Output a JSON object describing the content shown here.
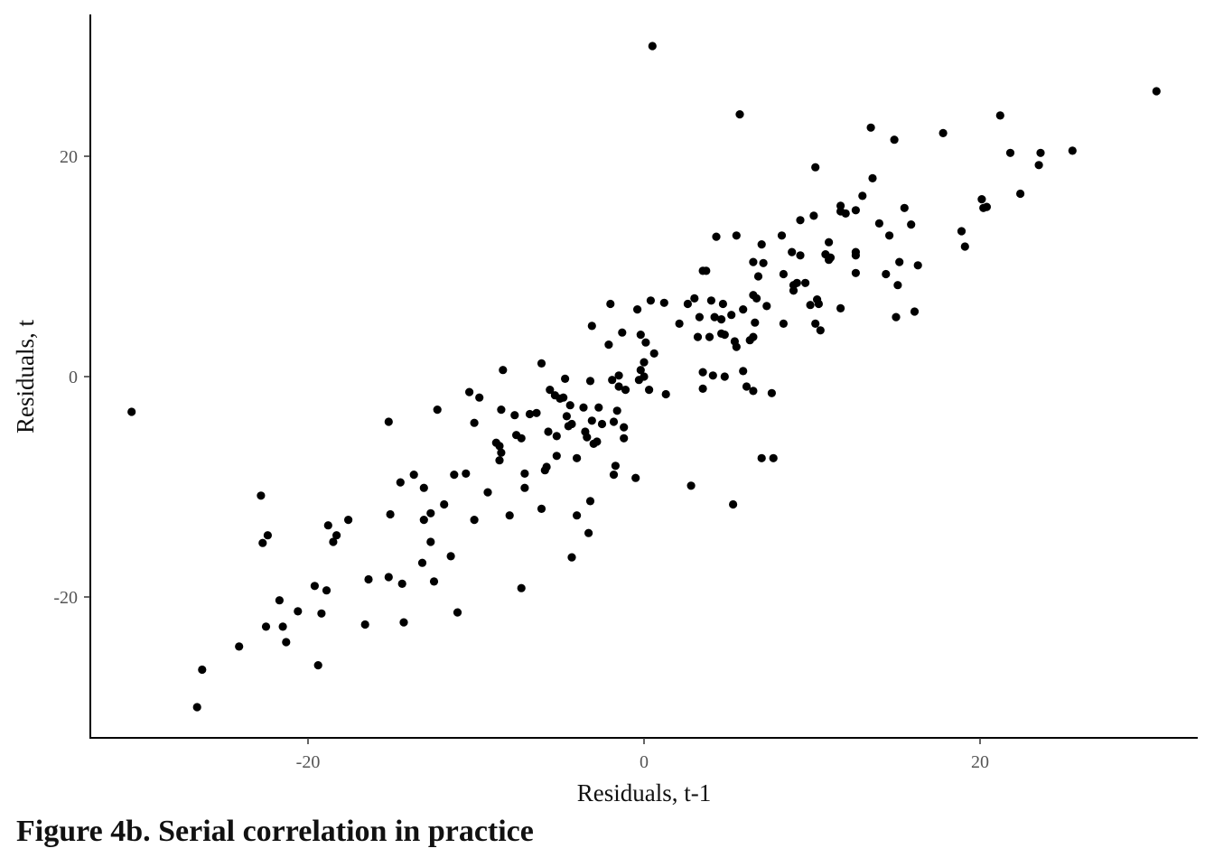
{
  "caption": "Figure 4b. Serial correlation in practice",
  "chart_data": {
    "type": "scatter",
    "title": "",
    "xlabel": "Residuals, t-1",
    "ylabel": "Residuals, t",
    "xlim": [
      -33,
      33
    ],
    "ylim": [
      -33,
      33
    ],
    "xticks": [
      -20,
      0,
      20
    ],
    "yticks": [
      -20,
      0,
      20
    ],
    "grid": false,
    "legend": "none",
    "point_color": "#000000",
    "points": [
      [
        -30.5,
        -3.2
      ],
      [
        -26.6,
        -30
      ],
      [
        -26.3,
        -26.6
      ],
      [
        -24.1,
        -24.5
      ],
      [
        -22.8,
        -10.8
      ],
      [
        -22.7,
        -15.1
      ],
      [
        -22.4,
        -14.4
      ],
      [
        -22.5,
        -22.7
      ],
      [
        -21.7,
        -20.3
      ],
      [
        -21.5,
        -22.7
      ],
      [
        -21.3,
        -24.1
      ],
      [
        -20.6,
        -21.3
      ],
      [
        -19.6,
        -19
      ],
      [
        -19.4,
        -26.2
      ],
      [
        -19.2,
        -21.5
      ],
      [
        -18.9,
        -19.4
      ],
      [
        -18.8,
        -13.5
      ],
      [
        -18.5,
        -15
      ],
      [
        -18.3,
        -14.4
      ],
      [
        -17.6,
        -13
      ],
      [
        -16.6,
        -22.5
      ],
      [
        -16.4,
        -18.4
      ],
      [
        -15.2,
        -4.1
      ],
      [
        -15.1,
        -12.5
      ],
      [
        -15.2,
        -18.2
      ],
      [
        -14.5,
        -9.6
      ],
      [
        -14.4,
        -18.8
      ],
      [
        -14.3,
        -22.3
      ],
      [
        -13.7,
        -8.9
      ],
      [
        -13.2,
        -16.9
      ],
      [
        -13.1,
        -13
      ],
      [
        -13.1,
        -10.1
      ],
      [
        -12.7,
        -12.4
      ],
      [
        -12.7,
        -15
      ],
      [
        -12.5,
        -18.6
      ],
      [
        -12.3,
        -3
      ],
      [
        -11.9,
        -11.6
      ],
      [
        -11.5,
        -16.3
      ],
      [
        -11.3,
        -8.9
      ],
      [
        -11.1,
        -21.4
      ],
      [
        -10.4,
        -1.4
      ],
      [
        -10.6,
        -8.8
      ],
      [
        -10.1,
        -4.2
      ],
      [
        -10.1,
        -13
      ],
      [
        -9.8,
        -1.9
      ],
      [
        -9.3,
        -10.5
      ],
      [
        -8.8,
        -6
      ],
      [
        -8.6,
        -6.3
      ],
      [
        -8.6,
        -7.6
      ],
      [
        -8.5,
        -3
      ],
      [
        -8.4,
        0.6
      ],
      [
        -8.5,
        -6.9
      ],
      [
        -7.7,
        -3.5
      ],
      [
        -7.6,
        -5.3
      ],
      [
        -8.0,
        -12.6
      ],
      [
        -7.3,
        -5.6
      ],
      [
        -7.1,
        -10.1
      ],
      [
        -7.1,
        -8.8
      ],
      [
        -7.3,
        -19.2
      ],
      [
        -6.8,
        -3.4
      ],
      [
        -6.4,
        -3.3
      ],
      [
        -6.1,
        1.2
      ],
      [
        -6.1,
        -12
      ],
      [
        -5.9,
        -8.5
      ],
      [
        -5.8,
        -8.2
      ],
      [
        -5.7,
        -5
      ],
      [
        -5.6,
        -1.2
      ],
      [
        -5.3,
        -1.7
      ],
      [
        -5.2,
        -5.4
      ],
      [
        -5.2,
        -7.2
      ],
      [
        -5.0,
        -2
      ],
      [
        -4.8,
        -1.9
      ],
      [
        -4.7,
        -0.2
      ],
      [
        -4.6,
        -3.6
      ],
      [
        -4.5,
        -4.5
      ],
      [
        -4.4,
        -2.6
      ],
      [
        -4.3,
        -4.3
      ],
      [
        -4.3,
        -16.4
      ],
      [
        -4.0,
        -12.6
      ],
      [
        -4.0,
        -7.4
      ],
      [
        -3.6,
        -2.8
      ],
      [
        -3.5,
        -5
      ],
      [
        -3.4,
        -5.5
      ],
      [
        -3.2,
        -0.4
      ],
      [
        -3.1,
        -4
      ],
      [
        -3.1,
        4.6
      ],
      [
        -3.2,
        -11.3
      ],
      [
        -3.3,
        -14.2
      ],
      [
        -3.0,
        -6.1
      ],
      [
        -2.8,
        -5.9
      ],
      [
        -2.7,
        -2.8
      ],
      [
        -2.5,
        -4.3
      ],
      [
        -2.1,
        2.9
      ],
      [
        -2.0,
        6.6
      ],
      [
        -1.9,
        -0.3
      ],
      [
        -1.8,
        -8.9
      ],
      [
        -1.8,
        -4.1
      ],
      [
        -1.7,
        -8.1
      ],
      [
        -1.6,
        -3.1
      ],
      [
        -1.5,
        -0.9
      ],
      [
        -1.5,
        0.1
      ],
      [
        -1.3,
        4
      ],
      [
        -1.2,
        -4.6
      ],
      [
        -1.2,
        -5.6
      ],
      [
        -1.1,
        -1.2
      ],
      [
        -0.5,
        -9.2
      ],
      [
        -0.4,
        6.1
      ],
      [
        -0.3,
        -0.3
      ],
      [
        -0.2,
        0.6
      ],
      [
        -0.2,
        3.8
      ],
      [
        0,
        1.3
      ],
      [
        0,
        0
      ],
      [
        0.1,
        3.1
      ],
      [
        0.3,
        -1.2
      ],
      [
        0.4,
        6.9
      ],
      [
        0.5,
        30
      ],
      [
        0.6,
        2.1
      ],
      [
        1.2,
        6.7
      ],
      [
        1.3,
        -1.6
      ],
      [
        2.1,
        4.8
      ],
      [
        2.6,
        6.6
      ],
      [
        2.8,
        -9.9
      ],
      [
        3.0,
        7.1
      ],
      [
        3.2,
        3.6
      ],
      [
        3.3,
        5.4
      ],
      [
        3.5,
        9.6
      ],
      [
        3.5,
        -1.1
      ],
      [
        3.5,
        0.4
      ],
      [
        3.7,
        9.6
      ],
      [
        3.9,
        3.6
      ],
      [
        4.0,
        6.9
      ],
      [
        4.1,
        0.1
      ],
      [
        4.2,
        5.4
      ],
      [
        4.3,
        12.7
      ],
      [
        4.6,
        3.9
      ],
      [
        4.6,
        5.2
      ],
      [
        4.7,
        6.6
      ],
      [
        4.8,
        3.8
      ],
      [
        4.8,
        0
      ],
      [
        5.2,
        5.6
      ],
      [
        5.4,
        3.2
      ],
      [
        5.3,
        -11.6
      ],
      [
        5.5,
        2.7
      ],
      [
        5.5,
        12.8
      ],
      [
        5.7,
        23.8
      ],
      [
        5.9,
        6.1
      ],
      [
        5.9,
        0.5
      ],
      [
        6.1,
        -0.9
      ],
      [
        6.3,
        3.3
      ],
      [
        6.5,
        -1.3
      ],
      [
        6.5,
        10.4
      ],
      [
        6.5,
        3.6
      ],
      [
        6.5,
        7.4
      ],
      [
        6.6,
        4.9
      ],
      [
        6.7,
        7.1
      ],
      [
        6.8,
        9.1
      ],
      [
        7.0,
        12
      ],
      [
        7.0,
        -7.4
      ],
      [
        7.1,
        10.3
      ],
      [
        7.3,
        6.4
      ],
      [
        7.6,
        -1.5
      ],
      [
        7.7,
        -7.4
      ],
      [
        8.2,
        12.8
      ],
      [
        8.3,
        9.3
      ],
      [
        8.3,
        4.8
      ],
      [
        8.8,
        11.3
      ],
      [
        8.9,
        8.3
      ],
      [
        8.9,
        7.8
      ],
      [
        9.1,
        8.5
      ],
      [
        9.3,
        14.2
      ],
      [
        9.3,
        11
      ],
      [
        9.6,
        8.5
      ],
      [
        9.9,
        6.5
      ],
      [
        10.1,
        14.6
      ],
      [
        10.2,
        19
      ],
      [
        10.2,
        4.8
      ],
      [
        10.3,
        7
      ],
      [
        10.4,
        6.6
      ],
      [
        10.5,
        4.2
      ],
      [
        10.8,
        11.1
      ],
      [
        11.0,
        10.6
      ],
      [
        11.0,
        12.2
      ],
      [
        11.1,
        10.8
      ],
      [
        11.7,
        15.5
      ],
      [
        11.7,
        15
      ],
      [
        11.7,
        6.2
      ],
      [
        12.0,
        14.8
      ],
      [
        12.6,
        15.1
      ],
      [
        12.6,
        11
      ],
      [
        12.6,
        11.3
      ],
      [
        12.6,
        9.4
      ],
      [
        13.0,
        16.4
      ],
      [
        13.5,
        22.6
      ],
      [
        13.6,
        18
      ],
      [
        14.0,
        13.9
      ],
      [
        14.4,
        9.3
      ],
      [
        14.6,
        12.8
      ],
      [
        14.9,
        21.5
      ],
      [
        15.0,
        5.4
      ],
      [
        15.1,
        8.3
      ],
      [
        15.2,
        10.4
      ],
      [
        15.5,
        15.3
      ],
      [
        15.9,
        13.8
      ],
      [
        16.1,
        5.9
      ],
      [
        16.3,
        10.1
      ],
      [
        17.8,
        22.1
      ],
      [
        18.9,
        13.2
      ],
      [
        19.1,
        11.8
      ],
      [
        20.1,
        16.1
      ],
      [
        20.2,
        15.3
      ],
      [
        20.4,
        15.4
      ],
      [
        21.2,
        23.7
      ],
      [
        21.8,
        20.3
      ],
      [
        22.4,
        16.6
      ],
      [
        23.5,
        19.2
      ],
      [
        23.6,
        20.3
      ],
      [
        25.5,
        20.5
      ],
      [
        30.5,
        25.9
      ]
    ]
  }
}
